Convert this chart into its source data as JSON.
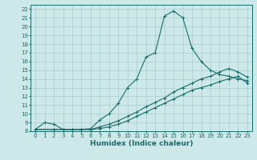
{
  "xlabel": "Humidex (Indice chaleur)",
  "ylabel": "",
  "bg_color": "#cce8e8",
  "grid_color": "#aacccc",
  "line_color": "#1a6b6b",
  "xlim": [
    -0.5,
    23.5
  ],
  "ylim": [
    8,
    22.5
  ],
  "xticks": [
    0,
    1,
    2,
    3,
    4,
    5,
    6,
    7,
    8,
    9,
    10,
    11,
    12,
    13,
    14,
    15,
    16,
    17,
    18,
    19,
    20,
    21,
    22,
    23
  ],
  "yticks": [
    8,
    9,
    10,
    11,
    12,
    13,
    14,
    15,
    16,
    17,
    18,
    19,
    20,
    21,
    22
  ],
  "line1_x": [
    0,
    1,
    2,
    3,
    4,
    5,
    6,
    7,
    8,
    9,
    10,
    11,
    12,
    13,
    14,
    15,
    16,
    17,
    18,
    19,
    20,
    21,
    22,
    23
  ],
  "line1_y": [
    8.2,
    9.0,
    8.8,
    8.2,
    8.2,
    8.2,
    8.3,
    9.3,
    10.0,
    11.2,
    13.0,
    14.0,
    16.5,
    17.0,
    21.2,
    21.8,
    21.0,
    17.5,
    16.0,
    15.0,
    14.5,
    14.3,
    14.0,
    13.8
  ],
  "line2_x": [
    0,
    2,
    3,
    4,
    5,
    6,
    7,
    8,
    9,
    10,
    11,
    12,
    13,
    14,
    15,
    16,
    17,
    18,
    19,
    20,
    21,
    22,
    23
  ],
  "line2_y": [
    8.2,
    8.2,
    8.2,
    8.2,
    8.2,
    8.2,
    8.5,
    8.8,
    9.2,
    9.7,
    10.2,
    10.8,
    11.3,
    11.8,
    12.5,
    13.0,
    13.5,
    14.0,
    14.3,
    14.8,
    15.2,
    14.8,
    14.2
  ],
  "line3_x": [
    0,
    2,
    3,
    4,
    5,
    6,
    7,
    8,
    9,
    10,
    11,
    12,
    13,
    14,
    15,
    16,
    17,
    18,
    19,
    20,
    21,
    22,
    23
  ],
  "line3_y": [
    8.2,
    8.2,
    8.2,
    8.2,
    8.2,
    8.2,
    8.3,
    8.5,
    8.8,
    9.2,
    9.7,
    10.2,
    10.7,
    11.2,
    11.7,
    12.2,
    12.7,
    13.0,
    13.3,
    13.7,
    14.0,
    14.3,
    13.5
  ],
  "tick_fontsize": 5.0,
  "xlabel_fontsize": 6.5
}
